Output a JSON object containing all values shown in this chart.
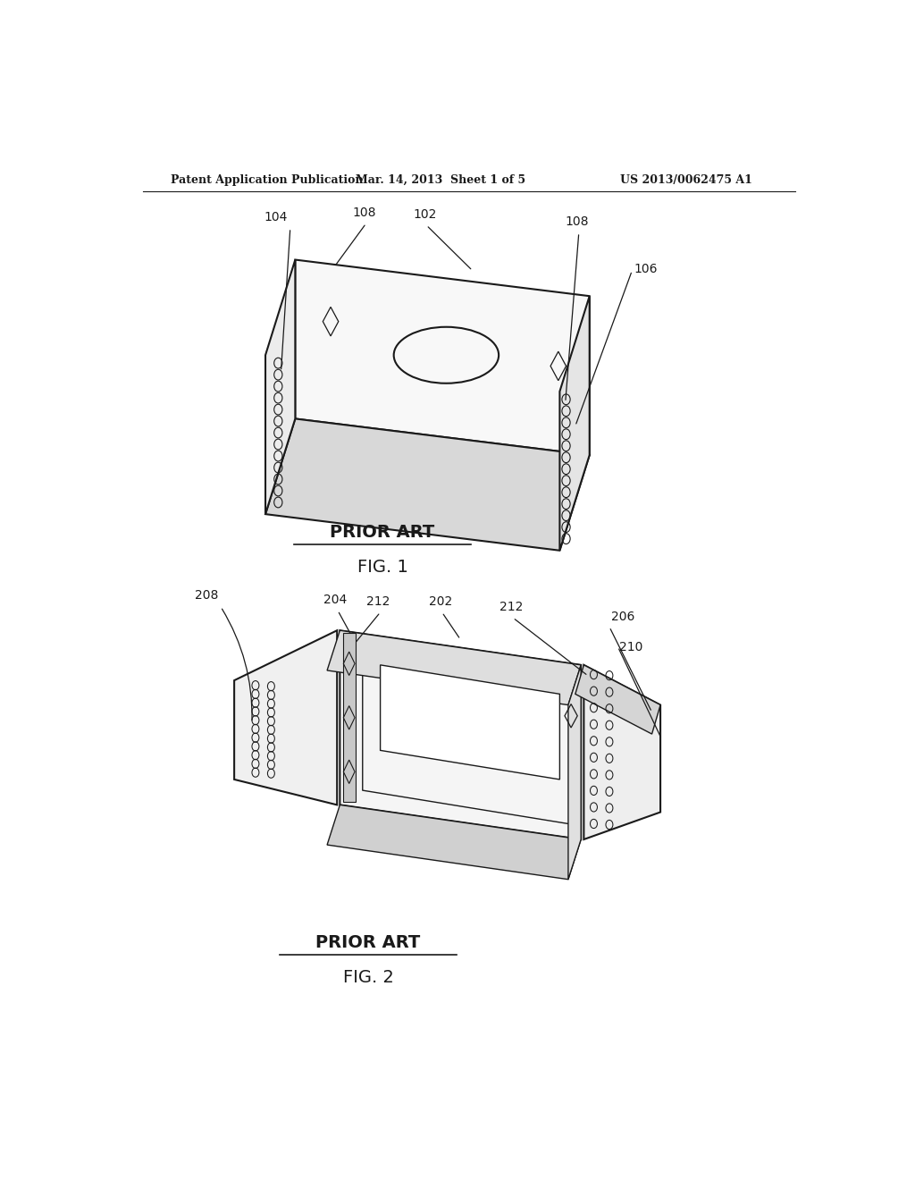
{
  "bg_color": "#ffffff",
  "line_color": "#1a1a1a",
  "header_left": "Patent Application Publication",
  "header_center": "Mar. 14, 2013  Sheet 1 of 5",
  "header_right": "US 2013/0062475 A1",
  "fig1_caption1": "PRIOR ART",
  "fig1_caption2": "FIG. 1",
  "fig2_caption1": "PRIOR ART",
  "fig2_caption2": "FIG. 2"
}
